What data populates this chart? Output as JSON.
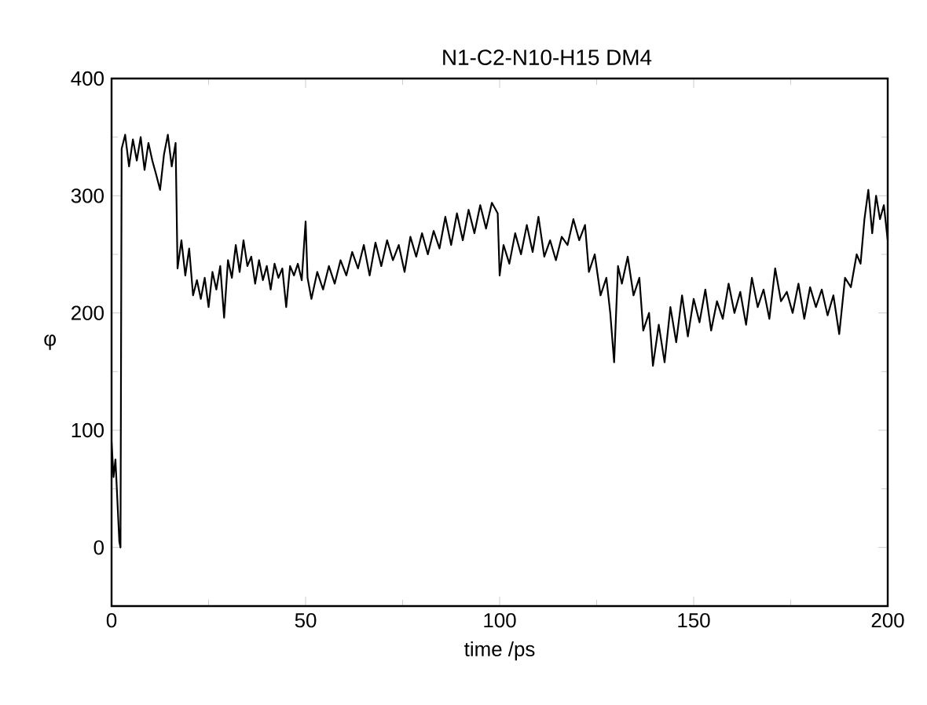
{
  "chart_data": {
    "type": "line",
    "title": "N1-C2-N10-H15  DM4",
    "xlabel": "time /ps",
    "ylabel": "φ",
    "xlim": [
      0,
      200
    ],
    "xticks": [
      0,
      50,
      100,
      150,
      200
    ],
    "ylim": [
      -50,
      400
    ],
    "yticks": [
      0,
      100,
      200,
      300,
      400
    ],
    "series": [
      {
        "color": "#000000",
        "x": [
          0,
          0.5,
          1,
          1.5,
          2,
          2.3,
          2.6,
          3.5,
          4.5,
          5.5,
          6.5,
          7.5,
          8.5,
          9.5,
          10.5,
          11.5,
          12.5,
          13.5,
          14.5,
          15.5,
          16.5,
          17,
          18,
          19,
          20,
          21,
          22,
          23,
          24,
          25,
          26,
          27,
          28,
          29,
          30,
          31,
          32,
          33,
          34,
          35,
          36,
          37,
          38,
          39,
          40,
          41,
          42,
          43,
          44,
          45,
          46,
          47,
          48,
          49,
          50,
          50.5,
          51.5,
          53,
          54.5,
          56,
          57.5,
          59,
          60.5,
          62,
          63.5,
          65,
          66.5,
          68,
          69.5,
          71,
          72.5,
          74,
          75.5,
          77,
          78.5,
          80,
          81.5,
          83,
          84.5,
          86,
          87.5,
          89,
          90.5,
          92,
          93.5,
          95,
          96.5,
          98,
          99.5,
          100,
          101,
          102.5,
          104,
          105.5,
          107,
          108.5,
          110,
          111.5,
          113,
          114.5,
          116,
          117.5,
          119,
          120.5,
          122,
          123,
          124.5,
          126,
          127.5,
          128.5,
          129.5,
          130.5,
          131.5,
          133,
          134.5,
          136,
          137,
          138.5,
          139.5,
          141,
          142.5,
          144,
          145.5,
          147,
          148.5,
          150,
          151.5,
          153,
          154.5,
          156,
          157.5,
          159,
          160.5,
          162,
          163.5,
          165,
          166.5,
          168,
          169.5,
          171,
          172.5,
          174,
          175.5,
          177,
          178.5,
          180,
          181.5,
          183,
          184.5,
          186,
          187.5,
          189,
          190.5,
          192,
          193,
          194,
          195,
          196,
          197,
          198,
          199,
          200
        ],
        "values": [
          90,
          60,
          75,
          40,
          5,
          0,
          340,
          352,
          325,
          348,
          330,
          350,
          322,
          345,
          330,
          318,
          305,
          335,
          352,
          325,
          345,
          238,
          262,
          232,
          255,
          215,
          228,
          212,
          230,
          205,
          235,
          220,
          240,
          196,
          245,
          230,
          258,
          235,
          262,
          240,
          248,
          225,
          245,
          228,
          240,
          220,
          242,
          230,
          238,
          205,
          240,
          232,
          242,
          228,
          278,
          230,
          212,
          235,
          220,
          240,
          225,
          245,
          232,
          252,
          238,
          258,
          232,
          260,
          240,
          262,
          245,
          258,
          235,
          265,
          248,
          268,
          250,
          270,
          255,
          282,
          258,
          285,
          262,
          288,
          268,
          292,
          272,
          294,
          285,
          232,
          258,
          242,
          268,
          250,
          275,
          252,
          282,
          248,
          262,
          245,
          265,
          258,
          280,
          262,
          275,
          235,
          250,
          215,
          230,
          200,
          158,
          240,
          225,
          248,
          215,
          230,
          185,
          200,
          155,
          190,
          158,
          205,
          175,
          215,
          180,
          212,
          192,
          220,
          185,
          210,
          195,
          225,
          200,
          218,
          190,
          230,
          205,
          220,
          195,
          238,
          210,
          218,
          200,
          225,
          195,
          222,
          205,
          220,
          198,
          215,
          182,
          230,
          222,
          250,
          242,
          280,
          305,
          268,
          300,
          280,
          292,
          262
        ]
      }
    ]
  }
}
